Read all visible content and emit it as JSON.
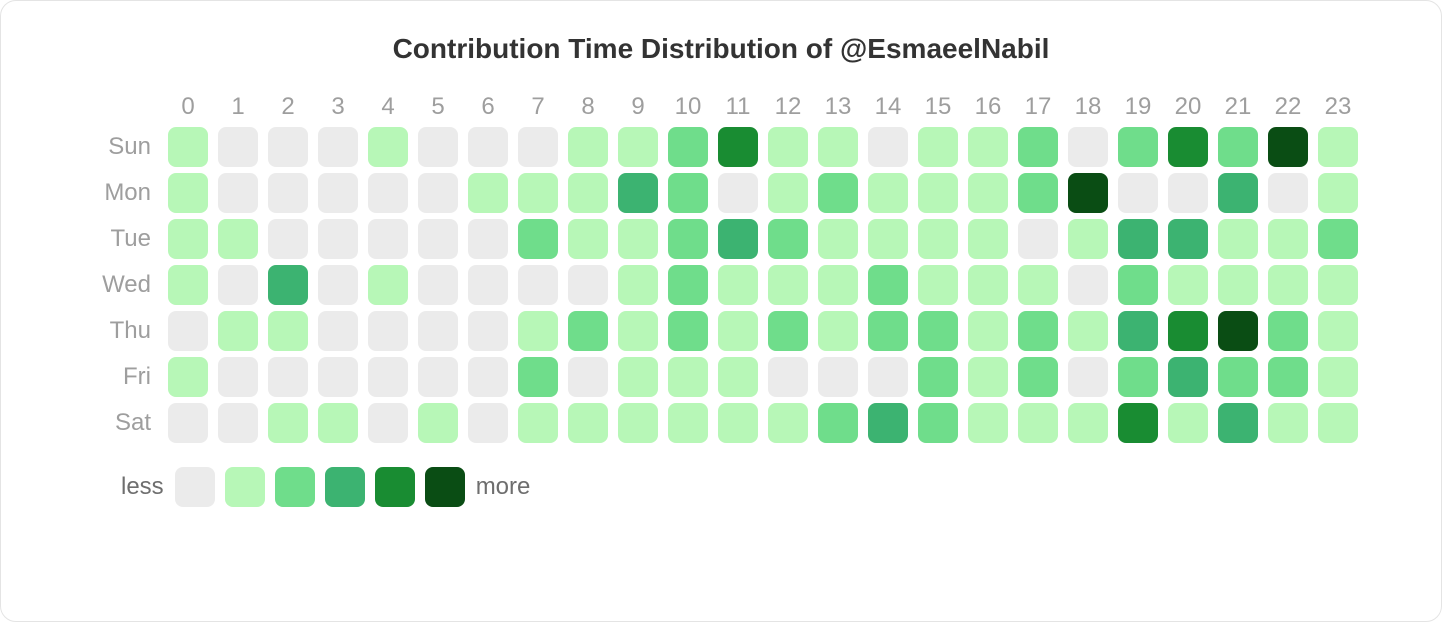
{
  "title": "Contribution Time Distribution of @EsmaeelNabil",
  "title_color": "#333333",
  "title_fontsize": 28,
  "label_color": "#9e9e9e",
  "label_fontsize": 24,
  "border_color": "#e4e4e4",
  "border_radius": 16,
  "cell_size": 40,
  "cell_radius": 8,
  "cell_gap": 10,
  "hours": [
    "0",
    "1",
    "2",
    "3",
    "4",
    "5",
    "6",
    "7",
    "8",
    "9",
    "10",
    "11",
    "12",
    "13",
    "14",
    "15",
    "16",
    "17",
    "18",
    "19",
    "20",
    "21",
    "22",
    "23"
  ],
  "days": [
    "Sun",
    "Mon",
    "Tue",
    "Wed",
    "Thu",
    "Fri",
    "Sat"
  ],
  "legend": {
    "less_label": "less",
    "more_label": "more",
    "levels": [
      0,
      1,
      2,
      3,
      4,
      5
    ]
  },
  "level_colors": {
    "0": "#ebebeb",
    "1": "#b7f7b7",
    "2": "#6fdd8b",
    "3": "#3cb371",
    "4": "#198c32",
    "5": "#0a4d14"
  },
  "heatmap": {
    "type": "heatmap",
    "x": "hour_of_day",
    "y": "day_of_week",
    "xlim": [
      0,
      23
    ],
    "background_color": "#ffffff",
    "values": [
      [
        1,
        0,
        0,
        0,
        1,
        0,
        0,
        0,
        1,
        1,
        2,
        4,
        1,
        1,
        0,
        1,
        1,
        2,
        0,
        2,
        4,
        2,
        5,
        1
      ],
      [
        1,
        0,
        0,
        0,
        0,
        0,
        1,
        1,
        1,
        3,
        2,
        0,
        1,
        2,
        1,
        1,
        1,
        2,
        5,
        0,
        0,
        3,
        0,
        1
      ],
      [
        1,
        1,
        0,
        0,
        0,
        0,
        0,
        2,
        1,
        1,
        2,
        3,
        2,
        1,
        1,
        1,
        1,
        0,
        1,
        3,
        3,
        1,
        1,
        2
      ],
      [
        1,
        0,
        3,
        0,
        1,
        0,
        0,
        0,
        0,
        1,
        2,
        1,
        1,
        1,
        2,
        1,
        1,
        1,
        0,
        2,
        1,
        1,
        1,
        1
      ],
      [
        0,
        1,
        1,
        0,
        0,
        0,
        0,
        1,
        2,
        1,
        2,
        1,
        2,
        1,
        2,
        2,
        1,
        2,
        1,
        3,
        4,
        5,
        2,
        1
      ],
      [
        1,
        0,
        0,
        0,
        0,
        0,
        0,
        2,
        0,
        1,
        1,
        1,
        0,
        0,
        0,
        2,
        1,
        2,
        0,
        2,
        3,
        2,
        2,
        1
      ],
      [
        0,
        0,
        1,
        1,
        0,
        1,
        0,
        1,
        1,
        1,
        1,
        1,
        1,
        2,
        3,
        2,
        1,
        1,
        1,
        4,
        1,
        3,
        1,
        1
      ]
    ]
  }
}
